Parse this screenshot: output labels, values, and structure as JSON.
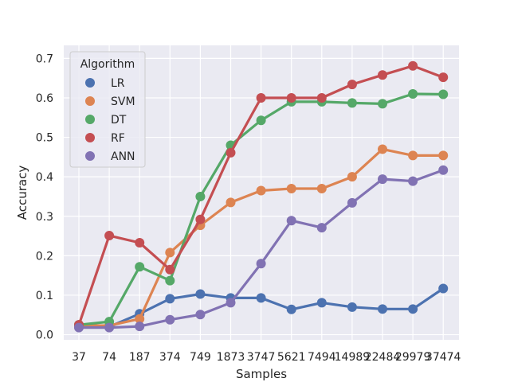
{
  "chart_data": {
    "type": "line",
    "title": "",
    "xlabel": "Samples",
    "ylabel": "Accuracy",
    "categories": [
      "37",
      "74",
      "187",
      "374",
      "749",
      "1873",
      "3747",
      "5621",
      "7494",
      "14989",
      "22484",
      "29979",
      "37474"
    ],
    "yticks": [
      "0.0",
      "0.1",
      "0.2",
      "0.3",
      "0.4",
      "0.5",
      "0.6",
      "0.7"
    ],
    "ylim": [
      -0.013,
      0.733
    ],
    "grid": true,
    "legend": {
      "title": "Algorithm",
      "placement": "upper-left"
    },
    "series": [
      {
        "name": "LR",
        "color": "#4c72b0",
        "values": [
          0.02,
          0.02,
          0.053,
          0.091,
          0.103,
          0.093,
          0.093,
          0.064,
          0.081,
          0.07,
          0.065,
          0.065,
          0.117
        ]
      },
      {
        "name": "SVM",
        "color": "#dd8452",
        "values": [
          0.023,
          0.023,
          0.04,
          0.208,
          0.277,
          0.335,
          0.365,
          0.37,
          0.37,
          0.4,
          0.47,
          0.454,
          0.454
        ]
      },
      {
        "name": "DT",
        "color": "#55a868",
        "values": [
          0.025,
          0.033,
          0.172,
          0.137,
          0.35,
          0.48,
          0.543,
          0.59,
          0.59,
          0.587,
          0.585,
          0.61,
          0.609
        ]
      },
      {
        "name": "RF",
        "color": "#c44e52",
        "values": [
          0.025,
          0.251,
          0.233,
          0.165,
          0.292,
          0.461,
          0.6,
          0.6,
          0.6,
          0.634,
          0.658,
          0.681,
          0.652
        ]
      },
      {
        "name": "ANN",
        "color": "#8172b3",
        "values": [
          0.018,
          0.018,
          0.021,
          0.038,
          0.051,
          0.081,
          0.18,
          0.289,
          0.271,
          0.334,
          0.394,
          0.389,
          0.417
        ]
      }
    ]
  }
}
